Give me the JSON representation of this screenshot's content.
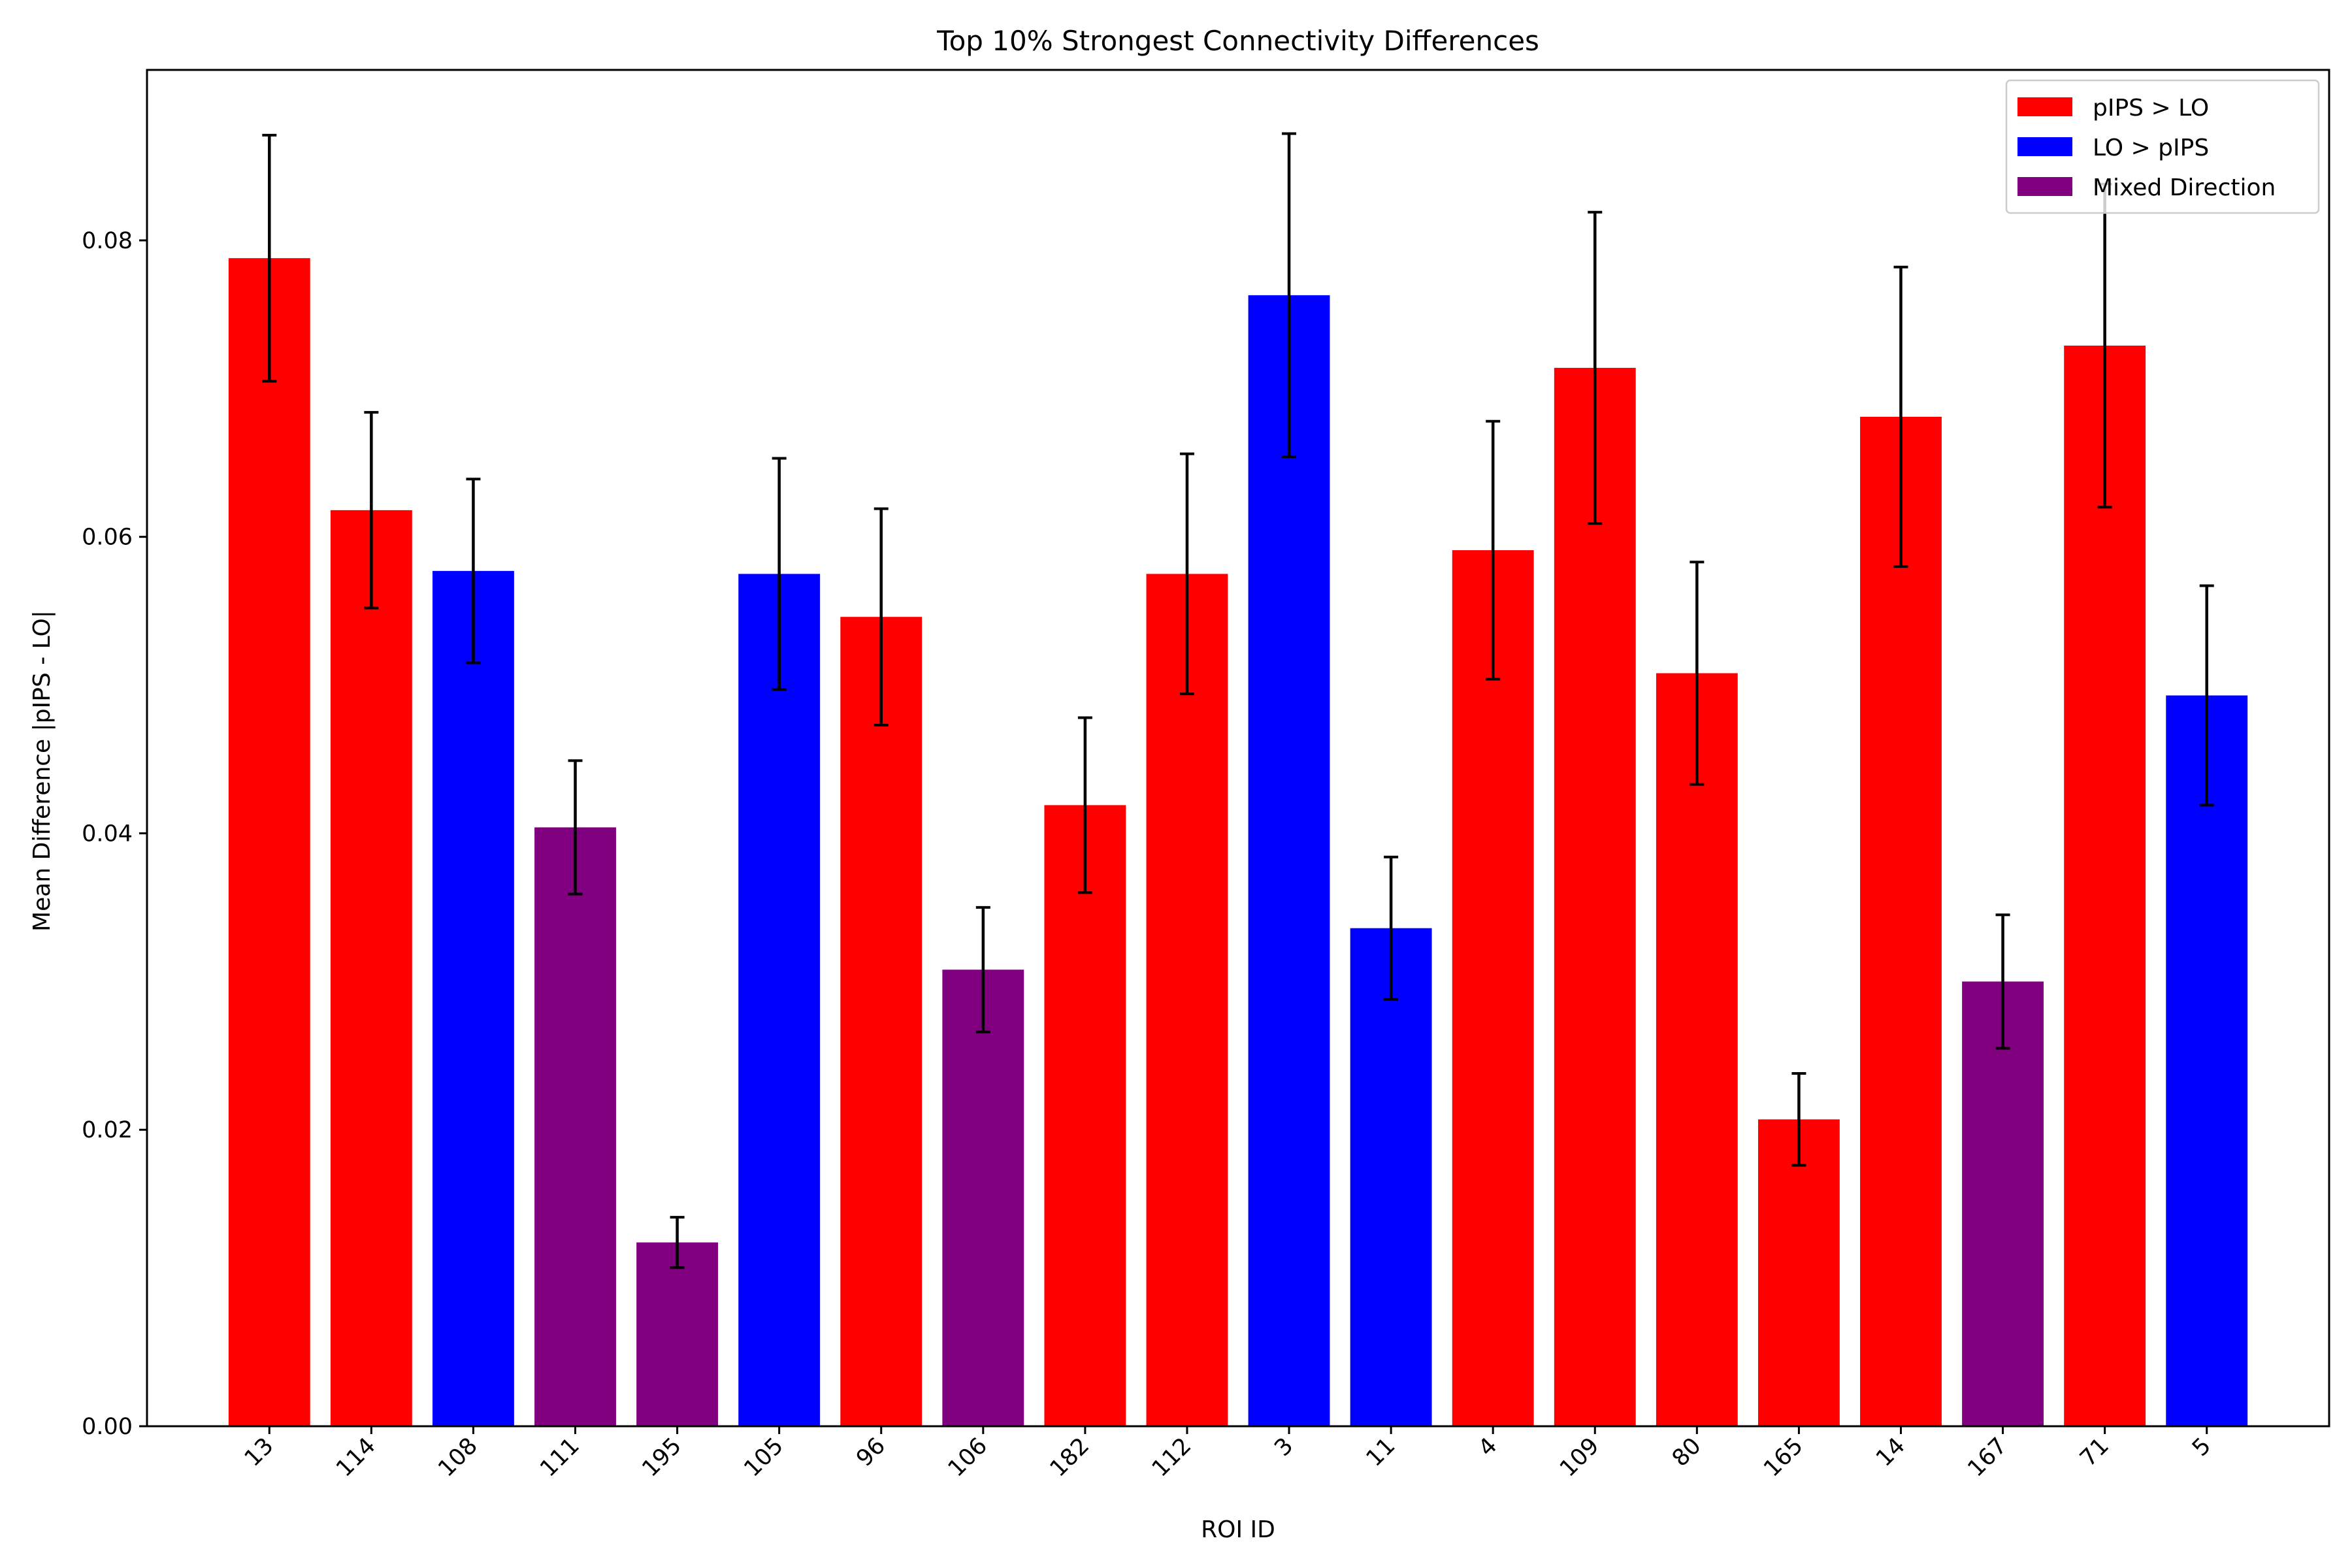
{
  "chart_data": {
    "type": "bar",
    "title": "Top 10% Strongest Connectivity Differences",
    "xlabel": "ROI ID",
    "ylabel": "Mean Difference |pIPS - LO|",
    "ylim": [
      0,
      0.0915
    ],
    "yticks": [
      0.0,
      0.02,
      0.04,
      0.06,
      0.08
    ],
    "ytick_labels": [
      "0.00",
      "0.02",
      "0.04",
      "0.06",
      "0.08"
    ],
    "categories": [
      "13",
      "114",
      "108",
      "111",
      "195",
      "105",
      "96",
      "106",
      "182",
      "112",
      "3",
      "11",
      "4",
      "109",
      "80",
      "165",
      "14",
      "167",
      "71",
      "5"
    ],
    "values": [
      0.0788,
      0.0618,
      0.0577,
      0.0404,
      0.0124,
      0.0575,
      0.0546,
      0.0308,
      0.0419,
      0.0575,
      0.0763,
      0.0336,
      0.0591,
      0.0714,
      0.0508,
      0.0207,
      0.0681,
      0.03,
      0.0729,
      0.0493
    ],
    "errors": [
      0.0083,
      0.0066,
      0.0062,
      0.0045,
      0.0017,
      0.0078,
      0.0073,
      0.0042,
      0.0059,
      0.0081,
      0.0109,
      0.0048,
      0.0087,
      0.0105,
      0.0075,
      0.0031,
      0.0101,
      0.0045,
      0.0109,
      0.0074
    ],
    "groups": [
      "pIPS > LO",
      "pIPS > LO",
      "LO > pIPS",
      "Mixed Direction",
      "Mixed Direction",
      "LO > pIPS",
      "pIPS > LO",
      "Mixed Direction",
      "pIPS > LO",
      "pIPS > LO",
      "LO > pIPS",
      "LO > pIPS",
      "pIPS > LO",
      "pIPS > LO",
      "pIPS > LO",
      "pIPS > LO",
      "pIPS > LO",
      "Mixed Direction",
      "pIPS > LO",
      "LO > pIPS"
    ],
    "legend": {
      "placement": "top-right",
      "entries": [
        {
          "label": "pIPS > LO",
          "color": "#ff0000"
        },
        {
          "label": "LO > pIPS",
          "color": "#0000ff"
        },
        {
          "label": "Mixed Direction",
          "color": "#800080"
        }
      ]
    },
    "grid": false,
    "error_bar_color": "#000000"
  }
}
